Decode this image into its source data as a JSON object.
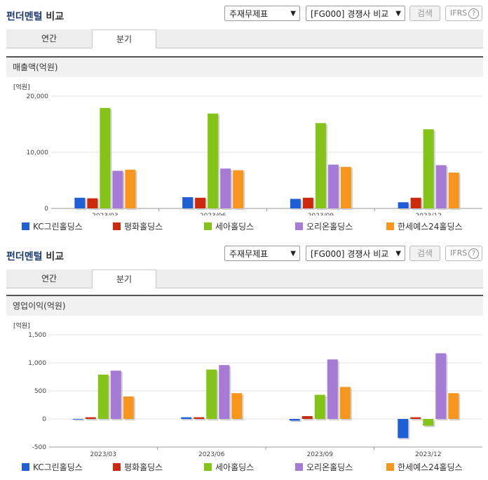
{
  "sections": [
    {
      "title_main": "펀더멘털",
      "title_sub": "비교",
      "statement_select": "주재무제표",
      "peer_select": "[FG000] 경쟁사 비교",
      "search_label": "검색",
      "ifrs_label": "IFRS",
      "tabs": [
        {
          "label": "연간"
        },
        {
          "label": "분기"
        }
      ],
      "active_tab": 1,
      "chart_header": "매출액(억원)",
      "unit_label": "[억원]",
      "chart_data": {
        "type": "bar",
        "title": "매출액(억원)",
        "ylabel": "[억원]",
        "categories": [
          "2023/03",
          "2023/06",
          "2023/09",
          "2023/12"
        ],
        "ylim": [
          0,
          20000
        ],
        "yticks": [
          0,
          10000,
          20000
        ],
        "ytick_labels": [
          "0",
          "10,000",
          "20,000"
        ],
        "series": [
          {
            "name": "KC그린홀딩스",
            "color": "#1f5fd6",
            "values": [
              1900,
              2000,
              1700,
              1100
            ]
          },
          {
            "name": "평화홀딩스",
            "color": "#cc2a0c",
            "values": [
              1800,
              1900,
              1900,
              1900
            ]
          },
          {
            "name": "세아홀딩스",
            "color": "#84c318",
            "values": [
              17900,
              16900,
              15200,
              14100
            ]
          },
          {
            "name": "오리온홀딩스",
            "color": "#a57bd6",
            "values": [
              6700,
              7100,
              7800,
              7700
            ]
          },
          {
            "name": "한세예스24홀딩스",
            "color": "#f7951d",
            "values": [
              6900,
              6800,
              7400,
              6400
            ]
          }
        ]
      }
    },
    {
      "title_main": "펀더멘털",
      "title_sub": "비교",
      "statement_select": "주재무제표",
      "peer_select": "[FG000] 경쟁사 비교",
      "search_label": "검색",
      "ifrs_label": "IFRS",
      "tabs": [
        {
          "label": "연간"
        },
        {
          "label": "분기"
        }
      ],
      "active_tab": 1,
      "chart_header": "영업이익(억원)",
      "unit_label": "[억원]",
      "chart_data": {
        "type": "bar",
        "title": "영업이익(억원)",
        "ylabel": "[억원]",
        "categories": [
          "2023/03",
          "2023/06",
          "2023/09",
          "2023/12"
        ],
        "ylim": [
          -500,
          1500
        ],
        "yticks": [
          -500,
          0,
          500,
          1000,
          1500
        ],
        "ytick_labels": [
          "-500",
          "0",
          "500",
          "1,000",
          "1,500"
        ],
        "series": [
          {
            "name": "KC그린홀딩스",
            "color": "#1f5fd6",
            "values": [
              0,
              30,
              -30,
              -340
            ]
          },
          {
            "name": "평화홀딩스",
            "color": "#cc2a0c",
            "values": [
              30,
              30,
              50,
              30
            ]
          },
          {
            "name": "세아홀딩스",
            "color": "#84c318",
            "values": [
              790,
              880,
              430,
              -120
            ]
          },
          {
            "name": "오리온홀딩스",
            "color": "#a57bd6",
            "values": [
              860,
              960,
              1060,
              1170
            ]
          },
          {
            "name": "한세예스24홀딩스",
            "color": "#f7951d",
            "values": [
              400,
              460,
              570,
              460
            ]
          }
        ]
      }
    }
  ]
}
